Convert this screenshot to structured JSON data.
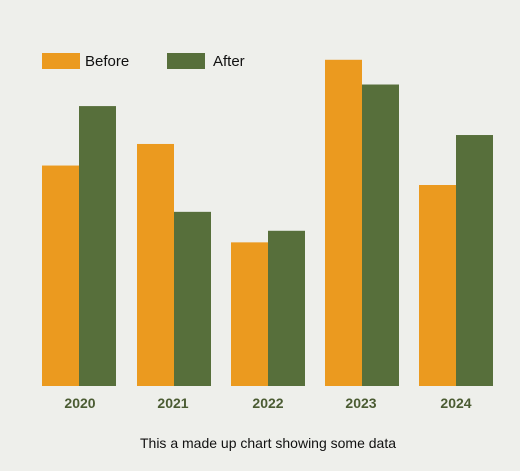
{
  "chart_data": {
    "type": "bar",
    "title": "",
    "xlabel": "",
    "ylabel": "",
    "categories": [
      "2020",
      "2021",
      "2022",
      "2023",
      "2024"
    ],
    "series": [
      {
        "name": "Before",
        "color": "#eb9a1f",
        "values": [
          41.9,
          46.0,
          27.3,
          62.0,
          38.2
        ]
      },
      {
        "name": "After",
        "color": "#576f3b",
        "values": [
          53.2,
          33.1,
          29.5,
          57.3,
          47.7
        ]
      }
    ],
    "ylim": [
      0,
      65
    ],
    "grid": false,
    "legend_position": "top-left",
    "caption": "This a made up chart showing some data"
  }
}
